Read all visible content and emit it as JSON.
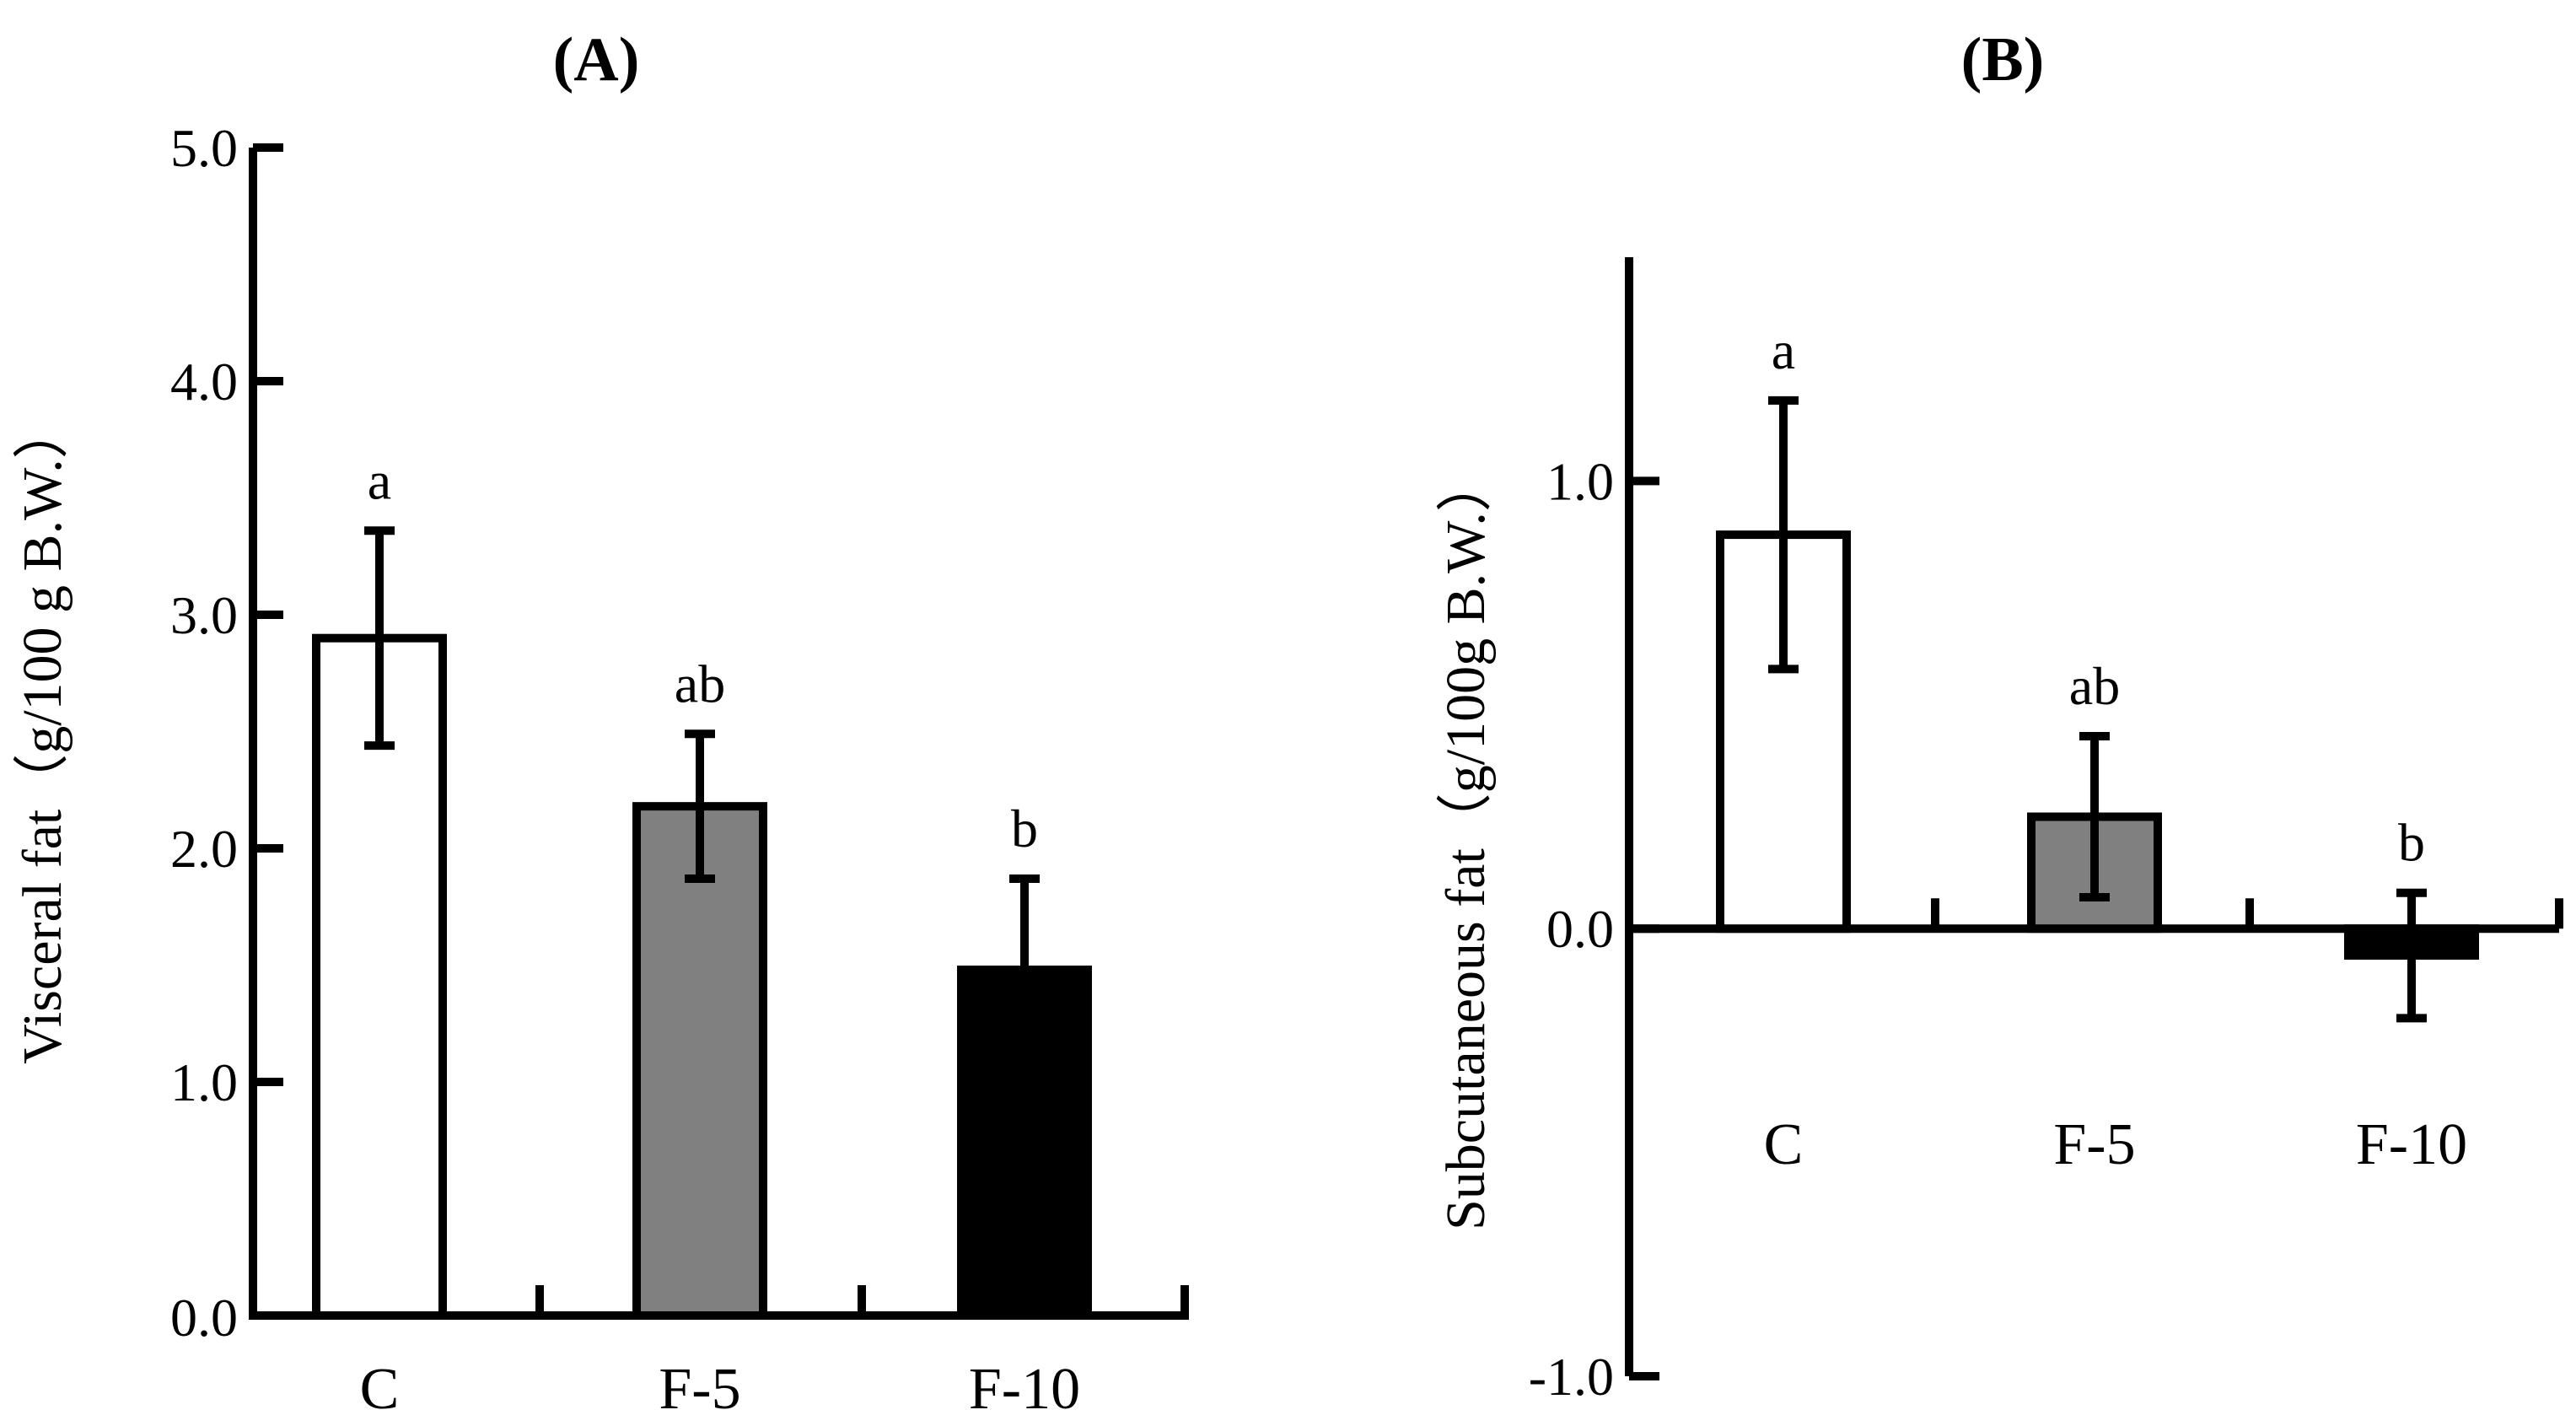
{
  "chart_data": [
    {
      "type": "bar",
      "panel": "(A)",
      "title": "",
      "ylabel": "Visceral fat（g/100 g B.W.）",
      "xlabel": "",
      "ylim": [
        0.0,
        5.0
      ],
      "yticks": [
        "0.0",
        "1.0",
        "2.0",
        "3.0",
        "4.0",
        "5.0"
      ],
      "categories": [
        "C",
        "F-5",
        "F-10"
      ],
      "values": [
        2.9,
        2.18,
        1.48
      ],
      "errors": [
        0.46,
        0.31,
        0.39
      ],
      "significance": [
        "a",
        "ab",
        "b"
      ],
      "bar_colors": [
        "#ffffff",
        "#808080",
        "#000000"
      ],
      "grid": false
    },
    {
      "type": "bar",
      "panel": "(B)",
      "title": "",
      "ylabel": "Subcutaneous fat（g/100g B.W.）",
      "xlabel": "",
      "ylim": [
        -1.0,
        1.5
      ],
      "yticks": [
        "-1.0",
        "0.0",
        "1.0"
      ],
      "categories": [
        "C",
        "F-5",
        "F-10"
      ],
      "values": [
        0.88,
        0.25,
        -0.06
      ],
      "errors": [
        0.3,
        0.18,
        0.14
      ],
      "significance": [
        "a",
        "ab",
        "b"
      ],
      "bar_colors": [
        "#ffffff",
        "#808080",
        "#000000"
      ],
      "grid": false
    }
  ]
}
